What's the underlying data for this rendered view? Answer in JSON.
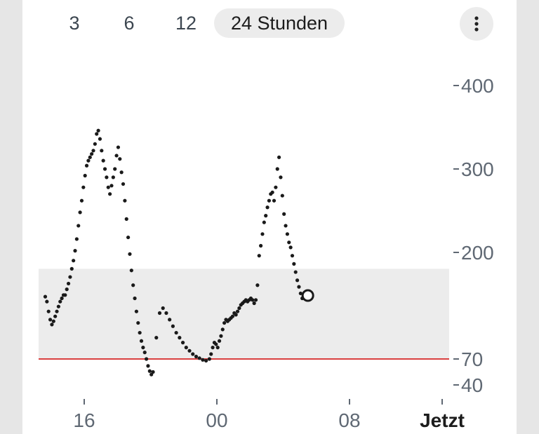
{
  "tabs": [
    {
      "label": "3"
    },
    {
      "label": "6"
    },
    {
      "label": "12"
    },
    {
      "label": "24 Stunden",
      "active": true
    }
  ],
  "menu_icon": "more-vertical-icon",
  "chart_data": {
    "type": "scatter",
    "unit_note": "",
    "x_tick_labels": [
      "16",
      "00",
      "08",
      "Jetzt"
    ],
    "x_ticks_hours": [
      16,
      24,
      32,
      36.5
    ],
    "x_range_hours": [
      13.6,
      37.8
    ],
    "y_tick_labels": [
      "400",
      "300",
      "200",
      "70",
      "40"
    ],
    "y_ticks": [
      400,
      300,
      200,
      70,
      40
    ],
    "ylim": [
      20,
      440
    ],
    "target_range": [
      70,
      180
    ],
    "low_threshold": 70,
    "colors": {
      "points": "#1a1a1a",
      "target_band": "#ececec",
      "low_line": "#d94040",
      "axis_text": "#5f6873",
      "now_label": "#1c1c1c"
    },
    "series": [
      {
        "values": [
          [
            13.65,
            146
          ],
          [
            13.75,
            140
          ],
          [
            13.85,
            128
          ],
          [
            13.95,
            118
          ],
          [
            14.05,
            112
          ],
          [
            14.15,
            116
          ],
          [
            14.25,
            122
          ],
          [
            14.35,
            128
          ],
          [
            14.45,
            134
          ],
          [
            14.55,
            140
          ],
          [
            14.65,
            144
          ],
          [
            14.75,
            148
          ],
          [
            14.85,
            148
          ],
          [
            14.95,
            155
          ],
          [
            15.05,
            162
          ],
          [
            15.15,
            170
          ],
          [
            15.25,
            180
          ],
          [
            15.35,
            190
          ],
          [
            15.45,
            202
          ],
          [
            15.55,
            216
          ],
          [
            15.65,
            232
          ],
          [
            15.75,
            248
          ],
          [
            15.85,
            262
          ],
          [
            15.95,
            278
          ],
          [
            16.05,
            292
          ],
          [
            16.15,
            304
          ],
          [
            16.25,
            310
          ],
          [
            16.35,
            314
          ],
          [
            16.45,
            318
          ],
          [
            16.55,
            322
          ],
          [
            16.65,
            330
          ],
          [
            16.75,
            342
          ],
          [
            16.85,
            346
          ],
          [
            16.95,
            336
          ],
          [
            17.05,
            322
          ],
          [
            17.15,
            310
          ],
          [
            17.25,
            300
          ],
          [
            17.35,
            290
          ],
          [
            17.45,
            278
          ],
          [
            17.55,
            270
          ],
          [
            17.65,
            280
          ],
          [
            17.75,
            290
          ],
          [
            17.85,
            300
          ],
          [
            17.95,
            316
          ],
          [
            18.05,
            326
          ],
          [
            18.15,
            312
          ],
          [
            18.25,
            296
          ],
          [
            18.35,
            282
          ],
          [
            18.45,
            262
          ],
          [
            18.55,
            240
          ],
          [
            18.65,
            218
          ],
          [
            18.75,
            198
          ],
          [
            18.85,
            178
          ],
          [
            18.95,
            160
          ],
          [
            19.05,
            144
          ],
          [
            19.15,
            128
          ],
          [
            19.25,
            114
          ],
          [
            19.35,
            102
          ],
          [
            19.45,
            92
          ],
          [
            19.55,
            84
          ],
          [
            19.65,
            78
          ],
          [
            19.75,
            70
          ],
          [
            19.85,
            62
          ],
          [
            19.95,
            56
          ],
          [
            20.05,
            52
          ],
          [
            20.15,
            55
          ],
          [
            20.35,
            96
          ],
          [
            20.55,
            126
          ],
          [
            20.75,
            132
          ],
          [
            20.95,
            126
          ],
          [
            21.15,
            118
          ],
          [
            21.35,
            110
          ],
          [
            21.55,
            102
          ],
          [
            21.75,
            96
          ],
          [
            21.95,
            90
          ],
          [
            22.15,
            84
          ],
          [
            22.35,
            80
          ],
          [
            22.55,
            76
          ],
          [
            22.75,
            73
          ],
          [
            22.95,
            71
          ],
          [
            23.15,
            69
          ],
          [
            23.35,
            68
          ],
          [
            23.55,
            70
          ],
          [
            23.65,
            76
          ],
          [
            23.75,
            84
          ],
          [
            23.85,
            90
          ],
          [
            23.95,
            88
          ],
          [
            24.05,
            84
          ],
          [
            24.15,
            92
          ],
          [
            24.25,
            98
          ],
          [
            24.35,
            106
          ],
          [
            24.45,
            114
          ],
          [
            24.55,
            118
          ],
          [
            24.65,
            116
          ],
          [
            24.75,
            118
          ],
          [
            24.85,
            120
          ],
          [
            24.95,
            122
          ],
          [
            25.05,
            126
          ],
          [
            25.15,
            124
          ],
          [
            25.25,
            128
          ],
          [
            25.35,
            132
          ],
          [
            25.45,
            136
          ],
          [
            25.55,
            138
          ],
          [
            25.65,
            140
          ],
          [
            25.75,
            142
          ],
          [
            25.85,
            140
          ],
          [
            25.95,
            142
          ],
          [
            26.05,
            144
          ],
          [
            26.15,
            142
          ],
          [
            26.25,
            138
          ],
          [
            26.35,
            142
          ],
          [
            26.45,
            160
          ],
          [
            26.55,
            196
          ],
          [
            26.65,
            208
          ],
          [
            26.75,
            222
          ],
          [
            26.85,
            236
          ],
          [
            26.95,
            244
          ],
          [
            27.05,
            254
          ],
          [
            27.15,
            262
          ],
          [
            27.25,
            270
          ],
          [
            27.35,
            272
          ],
          [
            27.45,
            262
          ],
          [
            27.55,
            278
          ],
          [
            27.65,
            300
          ],
          [
            27.75,
            314
          ],
          [
            27.85,
            290
          ],
          [
            27.95,
            268
          ],
          [
            28.05,
            246
          ],
          [
            28.15,
            232
          ],
          [
            28.25,
            222
          ],
          [
            28.35,
            212
          ],
          [
            28.45,
            206
          ],
          [
            28.55,
            196
          ],
          [
            28.65,
            186
          ],
          [
            28.75,
            176
          ],
          [
            28.85,
            166
          ],
          [
            28.95,
            158
          ],
          [
            29.05,
            150
          ],
          [
            29.15,
            144
          ]
        ]
      }
    ],
    "current_value_marker": "open-circle"
  }
}
